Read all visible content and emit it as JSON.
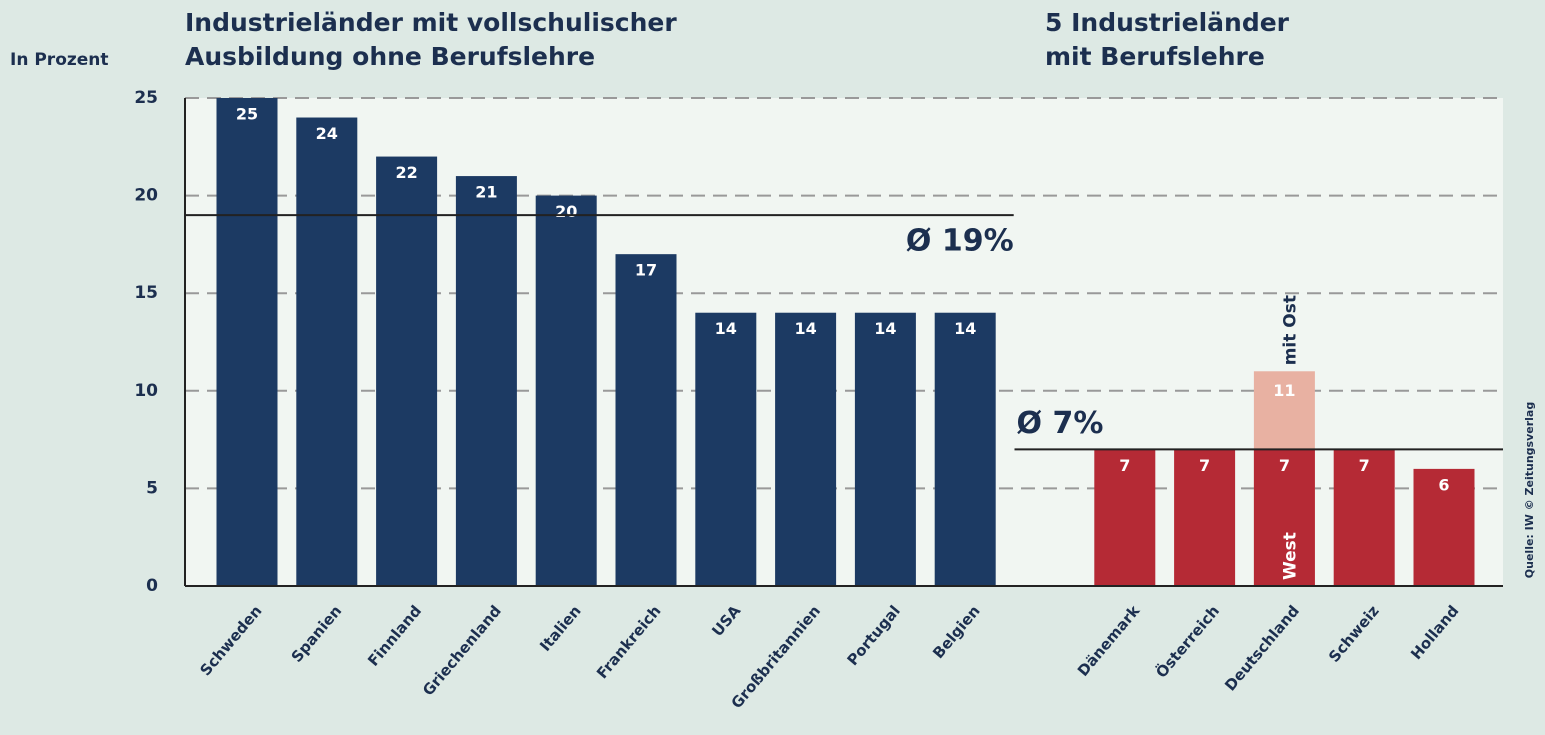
{
  "chart_data": {
    "type": "bar",
    "title_left": [
      "Industrieländer mit vollschulischer",
      "Ausbildung ohne Berufslehre"
    ],
    "title_right": [
      "5 Industrieländer",
      "mit Berufslehre"
    ],
    "y_label": "In Prozent",
    "source": "Quelle: IW © Zeitungsverlag",
    "categories": [
      "Schweden",
      "Spanien",
      "Finnland",
      "Griechenland",
      "Italien",
      "Frankreich",
      "USA",
      "Großbritannien",
      "Portugal",
      "Belgien",
      null,
      "Dänemark",
      "Österreich",
      "Deutschland",
      "Schweiz",
      "Holland"
    ],
    "values": [
      25,
      24,
      22,
      21,
      20,
      17,
      14,
      14,
      14,
      14,
      null,
      7,
      7,
      7,
      7,
      6
    ],
    "colors": [
      "#1c3a63",
      "#1c3a63",
      "#1c3a63",
      "#1c3a63",
      "#1c3a63",
      "#1c3a63",
      "#1c3a63",
      "#1c3a63",
      "#1c3a63",
      "#1c3a63",
      null,
      "#b52a35",
      "#b52a35",
      "#b52a35",
      "#b52a35",
      "#b52a35"
    ],
    "overlay": {
      "name": "mit Ost",
      "color": "#e8b1a2",
      "values": [
        null,
        null,
        null,
        null,
        null,
        null,
        null,
        null,
        null,
        null,
        null,
        null,
        null,
        11,
        null,
        null
      ]
    },
    "annotations": [
      {
        "text": "West",
        "category": "Deutschland"
      }
    ],
    "reference_lines": [
      {
        "label": "Ø 19%",
        "value": 19,
        "from": "Schweden",
        "to": "Belgien"
      },
      {
        "label": "Ø 7%",
        "value": 7,
        "from": "Dänemark",
        "to": "Holland"
      }
    ],
    "ylim": [
      0,
      25
    ],
    "yticks": [
      0,
      5,
      10,
      15,
      20,
      25
    ],
    "grid": true
  }
}
